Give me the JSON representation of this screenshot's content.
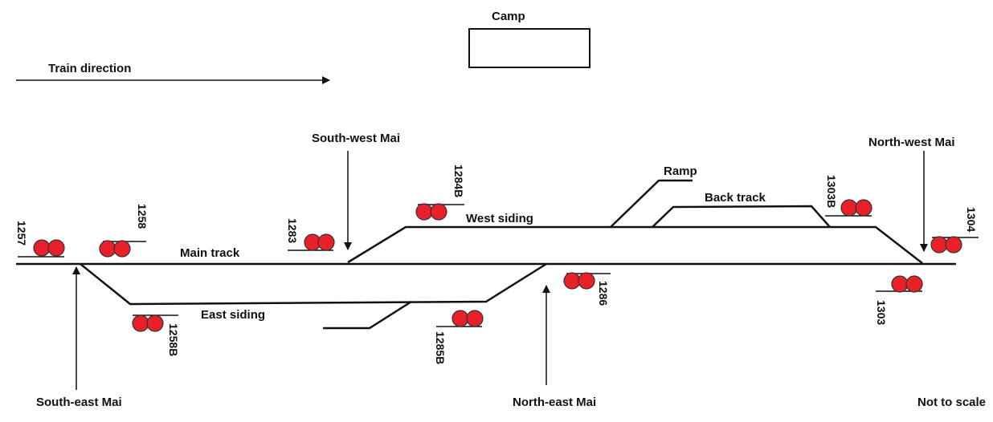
{
  "title_box": {
    "label": "Camp"
  },
  "direction": {
    "label": "Train direction"
  },
  "tracks": {
    "main": "Main track",
    "west_siding": "West siding",
    "east_siding": "East siding",
    "ramp": "Ramp",
    "back_track": "Back track"
  },
  "locations": {
    "south_west": "South-west Mai",
    "north_west": "North-west Mai",
    "south_east": "South-east Mai",
    "north_east": "North-east Mai"
  },
  "signals": {
    "s1257": "1257",
    "s1258": "1258",
    "s1283": "1283",
    "s1284B": "1284B",
    "s1303B": "1303B",
    "s1304": "1304",
    "s1303": "1303",
    "s1286": "1286",
    "s1285B": "1285B",
    "s1258B": "1258B"
  },
  "note": "Not to scale",
  "colors": {
    "signal_lamp": "#e8202a",
    "track": "#111111"
  }
}
